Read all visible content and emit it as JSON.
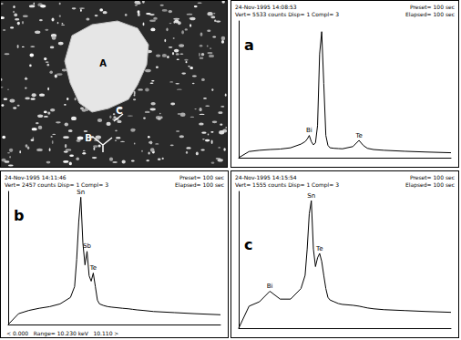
{
  "micrograph": {
    "labels": [
      "A",
      "B",
      "C"
    ]
  },
  "chart_data": [
    {
      "type": "line",
      "panel": "a",
      "header": [
        "24-Nov-1995 14:08:53",
        "Vert= 5533 counts Disp= 1 Compl= 3"
      ],
      "header_right": [
        "Preset= 100 sec",
        "Elapsed= 100 sec"
      ],
      "x": [
        0,
        0.5,
        1,
        1.5,
        2,
        2.5,
        3,
        3.2,
        3.3,
        3.4,
        3.5,
        3.6,
        3.7,
        3.8,
        3.9,
        4.0,
        4.1,
        4.2,
        4.3,
        4.4,
        4.6,
        4.8,
        5.0,
        5.5,
        5.8,
        6.0,
        6.2,
        6.5,
        7,
        8,
        9,
        10.23
      ],
      "values": [
        0,
        250,
        300,
        330,
        350,
        400,
        550,
        650,
        750,
        900,
        650,
        520,
        600,
        1300,
        4200,
        5100,
        3000,
        900,
        500,
        400,
        380,
        370,
        360,
        450,
        700,
        500,
        380,
        330,
        300,
        260,
        230,
        200
      ],
      "annotations": [
        {
          "x": 3.4,
          "y": 900,
          "text": "Bi"
        },
        {
          "x": 5.8,
          "y": 700,
          "text": "Te"
        }
      ],
      "color": "#000000",
      "xlim": [
        0,
        10.23
      ],
      "ylim": [
        0,
        5533
      ],
      "grid": false,
      "tick_labels": false
    },
    {
      "type": "line",
      "panel": "b",
      "header": [
        "24-Nov-1995 14:11:46",
        "Vert= 2457 counts Disp= 1 Compl= 3"
      ],
      "header_right": [
        "Preset= 100 sec",
        "Elapsed= 100 sec"
      ],
      "footer": "< 0.000   Range= 10.230 keV   10.110 >",
      "x": [
        0,
        0.5,
        1,
        1.5,
        2,
        2.5,
        3,
        3.2,
        3.3,
        3.4,
        3.5,
        3.6,
        3.7,
        3.8,
        3.9,
        4.0,
        4.1,
        4.2,
        4.3,
        4.4,
        4.6,
        4.8,
        5.0,
        5.5,
        5.8,
        6.0,
        6.2,
        6.5,
        7,
        8,
        9,
        10.23
      ],
      "values": [
        0,
        200,
        260,
        300,
        330,
        380,
        500,
        700,
        1200,
        1900,
        2350,
        1500,
        1100,
        1350,
        900,
        800,
        950,
        700,
        450,
        380,
        350,
        330,
        320,
        300,
        290,
        280,
        270,
        260,
        240,
        220,
        200,
        180
      ],
      "annotations": [
        {
          "x": 3.5,
          "y": 2350,
          "text": "Sn"
        },
        {
          "x": 3.8,
          "y": 1350,
          "text": "Sb"
        },
        {
          "x": 4.1,
          "y": 950,
          "text": "Te"
        }
      ],
      "color": "#000000",
      "xlim": [
        0,
        10.23
      ],
      "ylim": [
        0,
        2457
      ],
      "grid": false,
      "tick_labels": false
    },
    {
      "type": "line",
      "panel": "c",
      "header": [
        "24-Nov-1995 14:15:54",
        "Vert= 1555 counts Disp= 1 Compl= 3"
      ],
      "header_right": [
        "Preset= 100 sec",
        "Elapsed= 100 sec"
      ],
      "x": [
        0,
        0.5,
        1,
        1.5,
        2,
        2.5,
        3,
        3.2,
        3.3,
        3.4,
        3.5,
        3.6,
        3.7,
        3.8,
        3.9,
        4.0,
        4.1,
        4.2,
        4.3,
        4.4,
        4.6,
        4.8,
        5.0,
        5.5,
        5.8,
        6.0,
        6.2,
        6.5,
        7,
        8,
        9,
        10.23
      ],
      "values": [
        0,
        250,
        300,
        420,
        330,
        330,
        450,
        600,
        900,
        1300,
        1450,
        900,
        700,
        800,
        850,
        760,
        600,
        450,
        350,
        320,
        300,
        280,
        270,
        260,
        250,
        240,
        230,
        220,
        210,
        200,
        190,
        180
      ],
      "annotations": [
        {
          "x": 1.5,
          "y": 420,
          "text": "Bi"
        },
        {
          "x": 3.5,
          "y": 1450,
          "text": "Sn"
        },
        {
          "x": 3.9,
          "y": 850,
          "text": "Te"
        }
      ],
      "color": "#000000",
      "xlim": [
        0,
        10.23
      ],
      "ylim": [
        0,
        1555
      ],
      "grid": false,
      "tick_labels": false
    }
  ]
}
